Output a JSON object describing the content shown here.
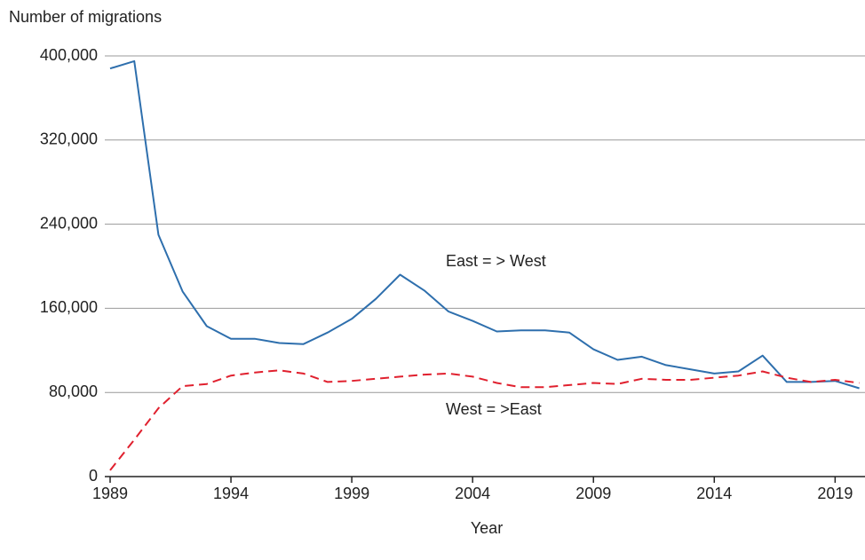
{
  "chart_data": {
    "type": "line",
    "y_label": "Number of migrations",
    "x_label": "Year",
    "x": [
      1989,
      1990,
      1991,
      1992,
      1993,
      1994,
      1995,
      1996,
      1997,
      1998,
      1999,
      2000,
      2001,
      2002,
      2003,
      2004,
      2005,
      2006,
      2007,
      2008,
      2009,
      2010,
      2011,
      2012,
      2013,
      2014,
      2015,
      2016,
      2017,
      2018,
      2019,
      2020
    ],
    "series": [
      {
        "name": "East = > West",
        "color": "#2e6fad",
        "dash": false,
        "values": [
          388000,
          395000,
          230000,
          176000,
          143000,
          131000,
          131000,
          127000,
          126000,
          137000,
          150000,
          169000,
          192000,
          177000,
          157000,
          148000,
          138000,
          139000,
          139000,
          137000,
          121000,
          111000,
          114000,
          106000,
          102000,
          98000,
          100000,
          115000,
          90000,
          90000,
          91000,
          84000
        ]
      },
      {
        "name": "West = >East",
        "color": "#e0202e",
        "dash": true,
        "values": [
          6000,
          35000,
          65000,
          86000,
          88000,
          96000,
          99000,
          101000,
          98000,
          90000,
          91000,
          93000,
          95000,
          97000,
          98000,
          95000,
          89000,
          85000,
          85000,
          87000,
          89000,
          88000,
          93000,
          92000,
          92000,
          94000,
          96000,
          100000,
          94000,
          90000,
          92000,
          89000
        ]
      }
    ],
    "xlim": [
      1989,
      2020.2
    ],
    "ylim": [
      0,
      400000
    ],
    "xticks": [
      1989,
      1994,
      1999,
      2004,
      2009,
      2014,
      2019
    ],
    "yticks": [
      0,
      {
        "value": 80000,
        "label": "80,000"
      },
      {
        "value": 160000,
        "label": "160,000"
      },
      {
        "value": 240000,
        "label": "240,000"
      },
      {
        "value": 320000,
        "label": "320,000"
      },
      {
        "value": 400000,
        "label": "400,000"
      }
    ],
    "grid": true
  }
}
